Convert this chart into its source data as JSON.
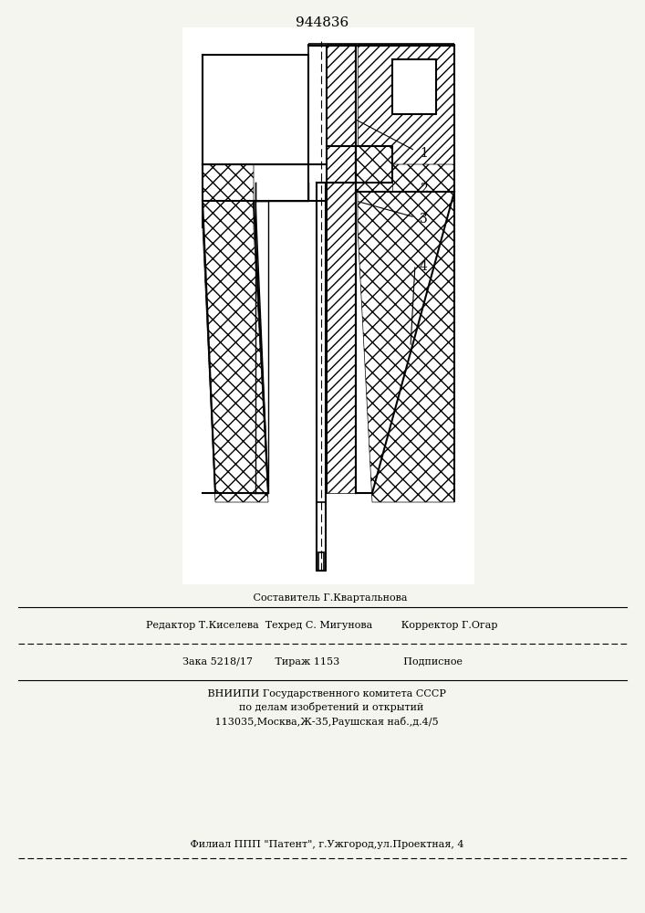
{
  "title": "944836",
  "title_fontsize": 11,
  "background_color": "#f5f5f0",
  "line_color": "#000000",
  "hatch_color": "#000000",
  "label_1": "1",
  "label_2": "2",
  "label_3": "3",
  "label_4": "4",
  "footer_lines": [
    "     Составитель Г.Квартальнова",
    "Редактор Т.Киселева  Техред С. Мигунова         Корректор Г.Огар",
    "Зака 5218/17       Тираж 1153                    Подписное",
    "   ВНИИПИ Государственного комитета СССР",
    "      по делам изобретений и открытий",
    "   113035,Москва,Ж-35,Раушская наб.,д.4/5",
    "   Филиал ППП \"Патент\", г.Ужгород,ул.Проектная, 4"
  ]
}
